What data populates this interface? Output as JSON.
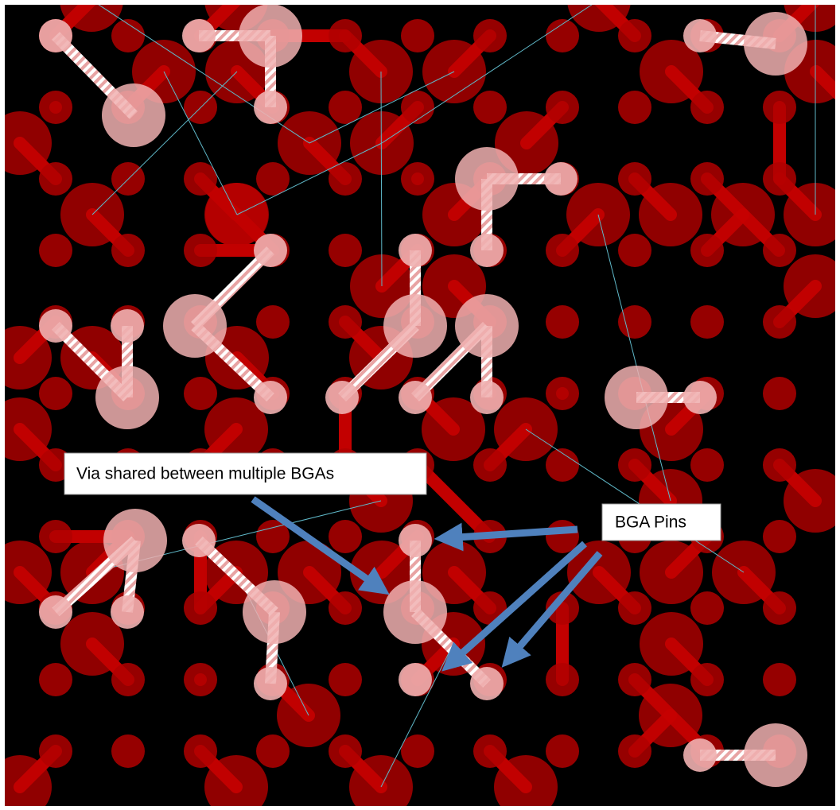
{
  "annotations": {
    "via_label": "Via shared between multiple BGAs",
    "pins_label": "BGA Pins"
  }
}
